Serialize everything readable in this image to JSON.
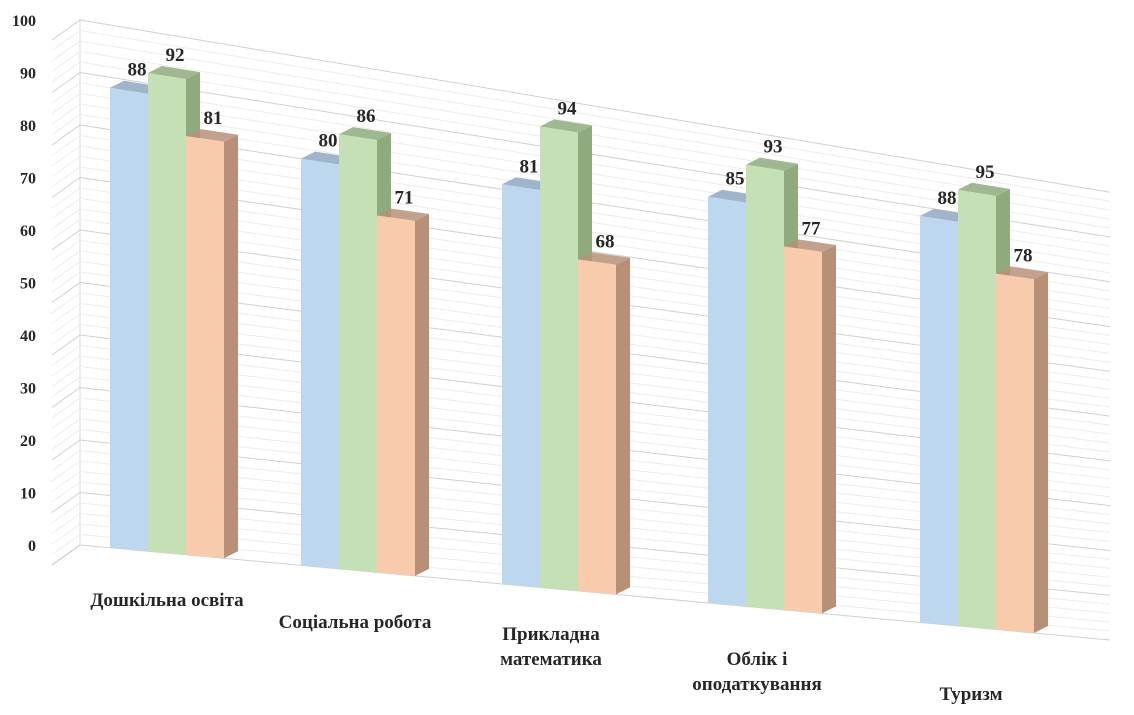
{
  "chart_data": {
    "type": "bar",
    "style": "3d-clustered-column",
    "title": "",
    "xlabel": "",
    "ylabel": "",
    "ylim": [
      0,
      100
    ],
    "yticks": [
      "0",
      "10",
      "20",
      "30",
      "40",
      "50",
      "60",
      "70",
      "80",
      "90",
      "100"
    ],
    "grid": true,
    "legend": "none",
    "categories": [
      [
        "Дошкільна освіта"
      ],
      [
        "Соціальна робота"
      ],
      [
        "Прикладна",
        "математика"
      ],
      [
        "Облік і",
        "оподаткування"
      ],
      [
        "Туризм"
      ]
    ],
    "series": [
      {
        "color": "#bdd7ee",
        "side": "#8fa7c2",
        "values": [
          88,
          80,
          81,
          85,
          88
        ]
      },
      {
        "color": "#c5e0b4",
        "side": "#8fab7e",
        "values": [
          92,
          86,
          94,
          93,
          95
        ]
      },
      {
        "color": "#f8cbad",
        "side": "#b89078",
        "values": [
          81,
          71,
          68,
          77,
          78
        ]
      }
    ]
  }
}
